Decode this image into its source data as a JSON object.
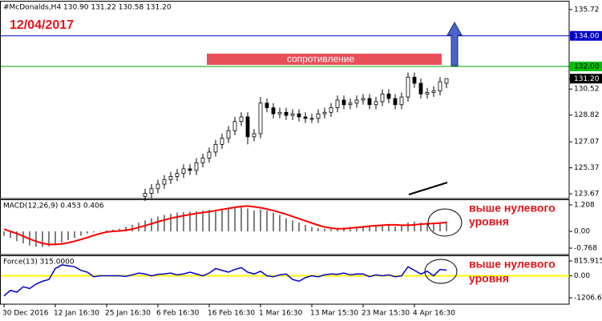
{
  "chart_data": [
    {
      "type": "candlestick",
      "title": "#McDonalds,H4  130.90 131.22 130.58 131.20",
      "date_label": "12/04/2017",
      "resistance_label": "сопротивление",
      "hlines": [
        {
          "value": 134,
          "color": "#0000cc"
        },
        {
          "value": 132,
          "color": "#00a000"
        }
      ],
      "ylim": [
        123.36,
        136.24
      ],
      "yticks": [
        135.72,
        {
          "value": 134,
          "label": "134.00",
          "box": "#0000cc"
        },
        {
          "value": 132,
          "label": "132.00",
          "box": "#00c000"
        },
        {
          "value": 131.2,
          "label": "131.20",
          "box": "#000000"
        },
        130.52,
        128.82,
        127.07,
        125.37,
        123.67
      ],
      "open": [
        null,
        null,
        null,
        null,
        null,
        null,
        null,
        null,
        null,
        null,
        null,
        null,
        null,
        null,
        null,
        null,
        null,
        null,
        null,
        null,
        null,
        null,
        123.5,
        123.7,
        124.0,
        124.3,
        124.6,
        124.8,
        125.0,
        125.3,
        125.2,
        125.7,
        126.0,
        126.4,
        126.9,
        127.3,
        127.8,
        128.4,
        128.7,
        127.4,
        127.6,
        129.6,
        129.3,
        128.9,
        129.0,
        128.8,
        128.9,
        128.7,
        128.6,
        128.6,
        128.9,
        129.0,
        129.3,
        129.8,
        129.5,
        129.6,
        129.8,
        129.9,
        129.5,
        129.7,
        130.2,
        129.9,
        129.5,
        130.0,
        131.3,
        130.9,
        130.2,
        130.3,
        130.4,
        130.9
      ],
      "high": [
        null,
        null,
        null,
        null,
        null,
        null,
        null,
        null,
        null,
        null,
        null,
        null,
        null,
        null,
        null,
        null,
        null,
        null,
        null,
        null,
        null,
        null,
        124.0,
        124.3,
        124.6,
        124.9,
        125.1,
        125.3,
        125.6,
        125.6,
        126.0,
        126.3,
        126.7,
        127.2,
        127.6,
        128.1,
        128.7,
        129.0,
        129.0,
        127.9,
        130.0,
        129.9,
        129.6,
        129.3,
        129.3,
        129.2,
        129.2,
        129.0,
        128.9,
        129.2,
        129.3,
        129.6,
        130.1,
        130.1,
        129.9,
        130.1,
        130.2,
        130.2,
        130.0,
        130.5,
        130.5,
        130.2,
        130.3,
        131.6,
        131.6,
        131.2,
        130.6,
        130.7,
        131.3,
        131.22
      ],
      "low": [
        null,
        null,
        null,
        null,
        null,
        null,
        null,
        null,
        null,
        null,
        null,
        null,
        null,
        null,
        null,
        null,
        null,
        null,
        null,
        null,
        null,
        null,
        123.2,
        123.4,
        123.7,
        124.0,
        124.3,
        124.5,
        124.7,
        124.9,
        124.9,
        125.4,
        125.7,
        126.1,
        126.6,
        127.0,
        127.5,
        128.1,
        126.9,
        127.1,
        127.3,
        129.0,
        128.6,
        128.6,
        128.5,
        128.5,
        128.4,
        128.3,
        128.3,
        128.3,
        128.6,
        128.7,
        129.0,
        129.2,
        129.2,
        129.3,
        129.5,
        129.2,
        129.2,
        129.4,
        129.6,
        129.2,
        129.2,
        129.7,
        130.6,
        129.9,
        129.9,
        130.0,
        130.1,
        130.58
      ],
      "close": [
        null,
        null,
        null,
        null,
        null,
        null,
        null,
        null,
        null,
        null,
        null,
        null,
        null,
        null,
        null,
        null,
        null,
        null,
        null,
        null,
        null,
        null,
        123.7,
        124.0,
        124.3,
        124.6,
        124.8,
        125.0,
        125.3,
        125.2,
        125.7,
        126.0,
        126.4,
        126.9,
        127.3,
        127.8,
        128.4,
        128.7,
        127.4,
        127.6,
        129.6,
        129.3,
        128.9,
        129.0,
        128.8,
        128.9,
        128.7,
        128.6,
        128.6,
        128.9,
        129.0,
        129.3,
        129.8,
        129.5,
        129.6,
        129.8,
        129.9,
        129.5,
        129.7,
        130.2,
        129.9,
        129.5,
        130.0,
        131.3,
        130.9,
        130.2,
        130.3,
        130.4,
        131.0,
        131.2
      ],
      "ma": {
        "color": "#ffffff",
        "values": [
          null,
          null,
          null,
          null,
          null,
          null,
          null,
          null,
          null,
          null,
          null,
          null,
          null,
          null,
          null,
          null,
          null,
          null,
          null,
          null,
          null,
          null,
          null,
          null,
          null,
          null,
          123.6,
          123.9,
          124.2,
          124.5,
          124.8,
          125.1,
          125.4,
          125.7,
          126.0,
          126.3,
          126.6,
          126.9,
          127.1,
          127.3,
          127.5,
          127.7,
          127.9,
          128.0,
          128.1,
          128.2,
          128.2,
          128.3,
          128.3,
          128.3,
          128.4,
          128.4,
          128.5,
          128.6,
          128.7,
          128.8,
          128.9,
          129.0,
          129.1,
          null,
          null,
          null,
          null,
          null,
          null,
          null,
          null,
          null,
          null,
          null
        ]
      }
    },
    {
      "type": "macd",
      "title": "MACD(12,26,9) 0.453 0.406",
      "annotation": [
        "выше нулевого",
        "уровня"
      ],
      "ylim": [
        -1.061,
        1.428
      ],
      "yticks": [
        1.208,
        {
          "value": 0,
          "label": "0.00"
        },
        -0.768
      ],
      "histogram": {
        "color": "#000000",
        "values": [
          -0.2,
          -0.3,
          -0.45,
          -0.55,
          -0.65,
          -0.7,
          -0.72,
          -0.68,
          -0.6,
          -0.5,
          -0.4,
          -0.3,
          -0.2,
          -0.1,
          -0.05,
          0.02,
          0.05,
          0.08,
          0.12,
          0.2,
          0.3,
          0.4,
          0.5,
          0.6,
          0.68,
          0.75,
          0.8,
          0.85,
          0.88,
          0.9,
          0.92,
          0.95,
          0.98,
          1.0,
          1.05,
          1.1,
          1.12,
          1.15,
          1.05,
          0.95,
          1.0,
          0.95,
          0.85,
          0.75,
          0.6,
          0.5,
          0.4,
          0.3,
          0.2,
          0.15,
          0.12,
          0.1,
          0.15,
          0.18,
          0.2,
          0.22,
          0.25,
          0.25,
          0.25,
          0.3,
          0.28,
          0.22,
          0.25,
          0.4,
          0.45,
          0.4,
          0.38,
          0.38,
          0.42,
          0.453
        ]
      },
      "signal": {
        "color": "#ff0000",
        "values": [
          0.1,
          0.0,
          -0.1,
          -0.22,
          -0.35,
          -0.45,
          -0.55,
          -0.6,
          -0.6,
          -0.57,
          -0.52,
          -0.45,
          -0.37,
          -0.28,
          -0.18,
          -0.1,
          -0.03,
          0.0,
          0.02,
          0.05,
          0.1,
          0.18,
          0.26,
          0.35,
          0.44,
          0.52,
          0.6,
          0.66,
          0.72,
          0.77,
          0.82,
          0.86,
          0.9,
          0.95,
          1.0,
          1.05,
          1.1,
          1.14,
          1.16,
          1.12,
          1.08,
          1.02,
          0.95,
          0.87,
          0.78,
          0.68,
          0.58,
          0.48,
          0.38,
          0.28,
          0.2,
          0.15,
          0.12,
          0.12,
          0.15,
          0.18,
          0.2,
          0.24,
          0.26,
          0.28,
          0.3,
          0.3,
          0.28,
          0.28,
          0.3,
          0.33,
          0.35,
          0.36,
          0.38,
          0.406
        ]
      }
    },
    {
      "type": "force",
      "title": "Force(13) 315.0000",
      "annotation": [
        "выше нулевого",
        "уровня"
      ],
      "ylim": [
        -1559,
        1080
      ],
      "yticks": [
        815.9151,
        {
          "value": 0,
          "label": "0.00"
        },
        -1206.69
      ],
      "zero_line_color": "#ffff00",
      "categories": [
        "30 Dec 2016",
        null,
        null,
        null,
        null,
        null,
        null,
        null,
        "12 Jan 16:30",
        null,
        null,
        null,
        null,
        null,
        null,
        null,
        "25 Jan 16:30",
        null,
        null,
        null,
        null,
        null,
        null,
        null,
        "6 Feb 16:30",
        null,
        null,
        null,
        null,
        null,
        null,
        null,
        "16 Feb 16:30",
        null,
        null,
        null,
        null,
        null,
        null,
        null,
        "1 Mar 16:30",
        null,
        null,
        null,
        null,
        null,
        null,
        null,
        "13 Mar 15:30",
        null,
        null,
        null,
        null,
        null,
        null,
        null,
        "23 Mar 15:30",
        null,
        null,
        null,
        null,
        null,
        null,
        null,
        "4 Apr 16:30",
        null,
        null,
        null,
        null,
        null
      ],
      "series": [
        {
          "color": "#0000cc",
          "values": [
            -1100,
            -800,
            -900,
            -600,
            -700,
            -450,
            -300,
            -200,
            400,
            600,
            550,
            500,
            300,
            200,
            -50,
            0,
            0,
            0,
            0,
            -30,
            50,
            150,
            100,
            0,
            80,
            100,
            150,
            50,
            100,
            200,
            100,
            0,
            150,
            400,
            300,
            200,
            350,
            450,
            200,
            100,
            250,
            0,
            -50,
            50,
            100,
            -200,
            -300,
            -100,
            0,
            -50,
            50,
            100,
            80,
            150,
            50,
            100,
            100,
            -50,
            50,
            0,
            50,
            -50,
            0,
            500,
            300,
            100,
            250,
            0,
            350,
            315
          ]
        }
      ]
    }
  ]
}
